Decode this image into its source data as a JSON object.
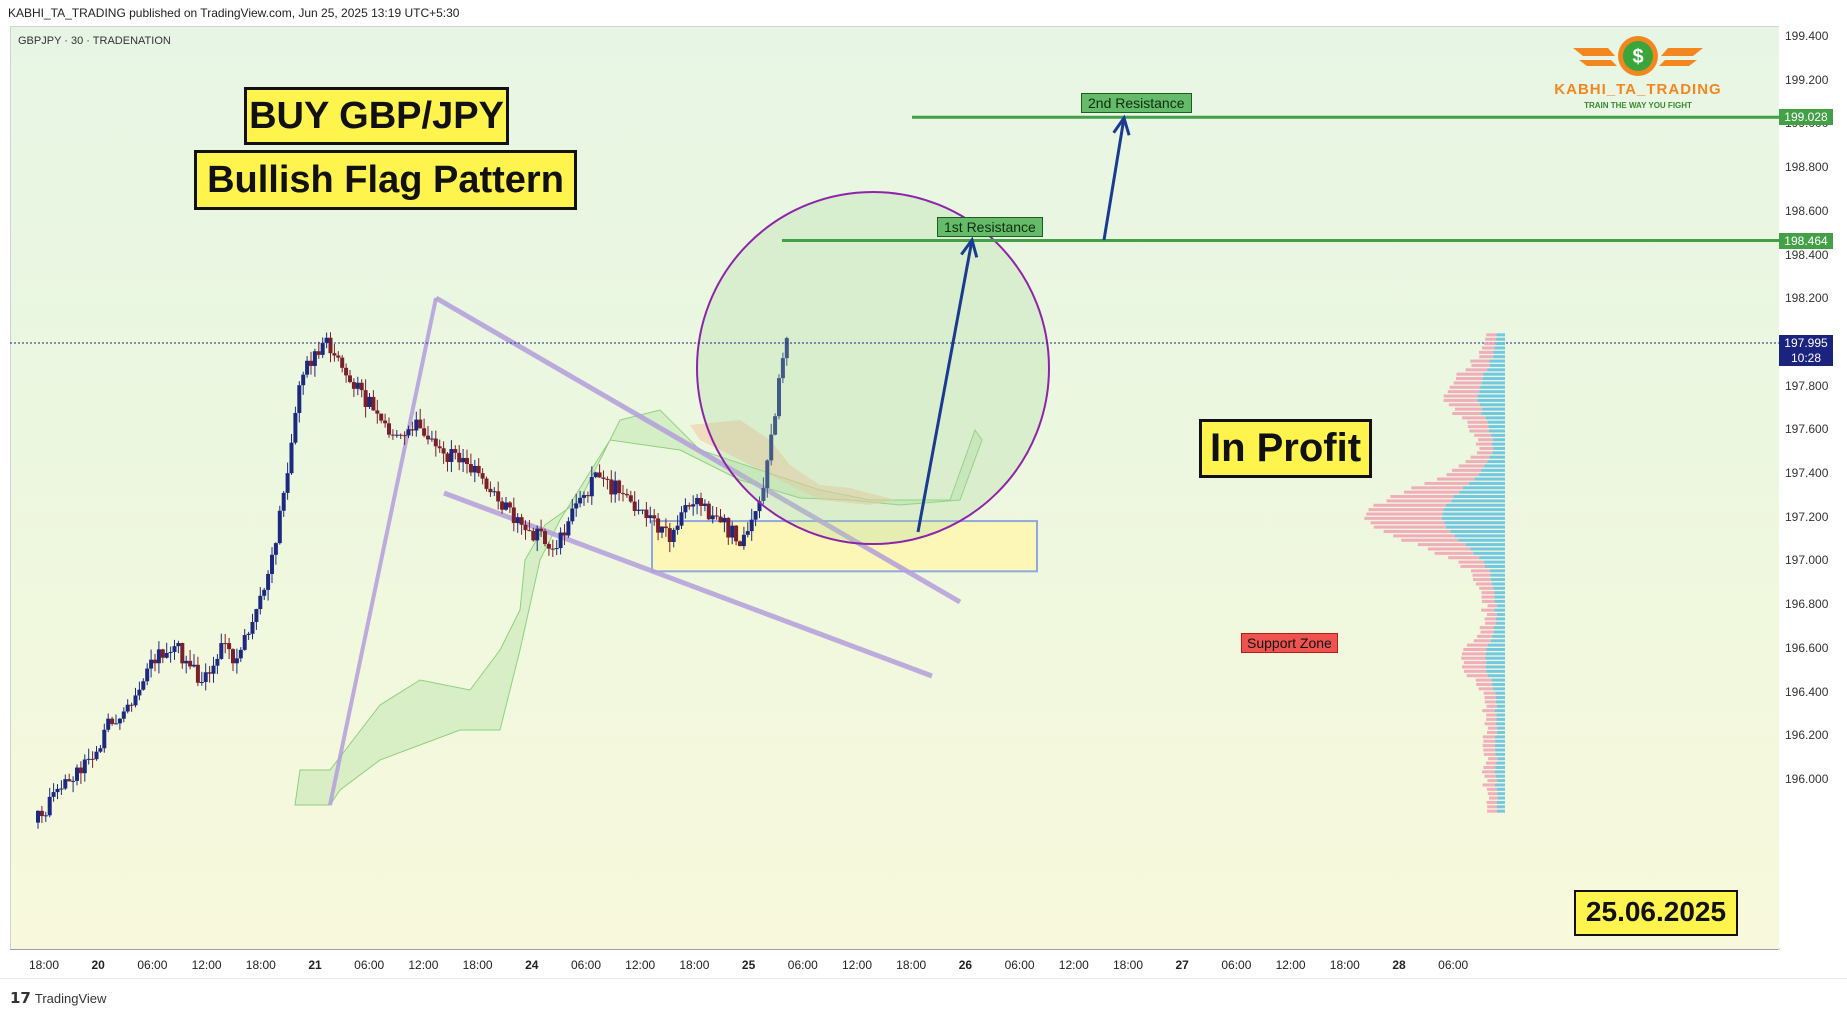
{
  "header": {
    "publisher": "KABHI_TA_TRADING published on TradingView.com, Jun 25, 2025 13:19 UTC+5:30",
    "symbol_line": "GBPJPY · 30 · TRADENATION"
  },
  "annotations": {
    "title_buy": "BUY GBP/JPY",
    "title_pattern": "Bullish Flag Pattern",
    "in_profit": "In Profit",
    "date": "25.06.2025",
    "first_resistance": "1st Resistance",
    "second_resistance": "2nd Resistance",
    "support_zone": "Support Zone"
  },
  "logo": {
    "name": "KABHI_TA_TRADING",
    "tagline": "TRAIN THE WAY YOU FIGHT",
    "icon": "dollar-coin-icon"
  },
  "footer": {
    "brand": "TradingView",
    "icon": "tradingview-logo-icon"
  },
  "colors": {
    "resistance": "#43a047",
    "support_zone_fill": "#fff7b0",
    "support_zone_border": "#8fa8e0",
    "flag_lines": "#b39ddb",
    "circle": "#8e24aa",
    "arrow": "#1a3b8f",
    "candle_up": "#1b2a80",
    "candle_down": "#7a1f2b"
  },
  "chart_data": {
    "type": "candlestick",
    "instrument": "GBPJPY",
    "timeframe": "30",
    "broker": "TRADENATION",
    "ylim": [
      195.8,
      199.5
    ],
    "y_ticks": [
      196.0,
      196.2,
      196.4,
      196.6,
      196.8,
      197.0,
      197.2,
      197.4,
      197.6,
      197.8,
      198.0,
      198.2,
      198.4,
      198.6,
      198.8,
      199.0,
      199.2,
      199.4
    ],
    "x_ticks": [
      "18:00",
      "20",
      "06:00",
      "12:00",
      "18:00",
      "21",
      "06:00",
      "12:00",
      "18:00",
      "24",
      "06:00",
      "12:00",
      "18:00",
      "25",
      "06:00",
      "12:00",
      "18:00",
      "26",
      "06:00",
      "12:00",
      "18:00",
      "27",
      "06:00",
      "12:00",
      "18:00",
      "28",
      "06:00"
    ],
    "last_price": 197.995,
    "countdown": "10:28",
    "levels": [
      {
        "name": "1st Resistance",
        "value": 198.464
      },
      {
        "name": "2nd Resistance",
        "value": 199.028
      }
    ],
    "support_zone": [
      196.95,
      197.18
    ],
    "close_path": [
      [
        195.92,
        6
      ],
      [
        196.05,
        6
      ],
      [
        196.2,
        6
      ],
      [
        196.35,
        6
      ],
      [
        196.55,
        6
      ],
      [
        196.62,
        6
      ],
      [
        196.48,
        6
      ],
      [
        196.6,
        6
      ],
      [
        196.55,
        4
      ],
      [
        196.7,
        4
      ],
      [
        196.9,
        4
      ],
      [
        197.3,
        4
      ],
      [
        197.8,
        4
      ],
      [
        197.95,
        4
      ],
      [
        198.0,
        3
      ],
      [
        197.8,
        6
      ],
      [
        197.7,
        6
      ],
      [
        197.55,
        6
      ],
      [
        197.62,
        6
      ],
      [
        197.5,
        6
      ],
      [
        197.45,
        6
      ],
      [
        197.3,
        6
      ],
      [
        197.2,
        6
      ],
      [
        197.12,
        6
      ],
      [
        197.05,
        4
      ],
      [
        197.25,
        6
      ],
      [
        197.4,
        6
      ],
      [
        197.3,
        6
      ],
      [
        197.18,
        6
      ],
      [
        197.1,
        6
      ],
      [
        197.28,
        6
      ],
      [
        197.2,
        6
      ],
      [
        197.08,
        6
      ],
      [
        197.3,
        6
      ],
      [
        197.6,
        2
      ],
      [
        197.8,
        2
      ],
      [
        198.0,
        2
      ]
    ]
  }
}
